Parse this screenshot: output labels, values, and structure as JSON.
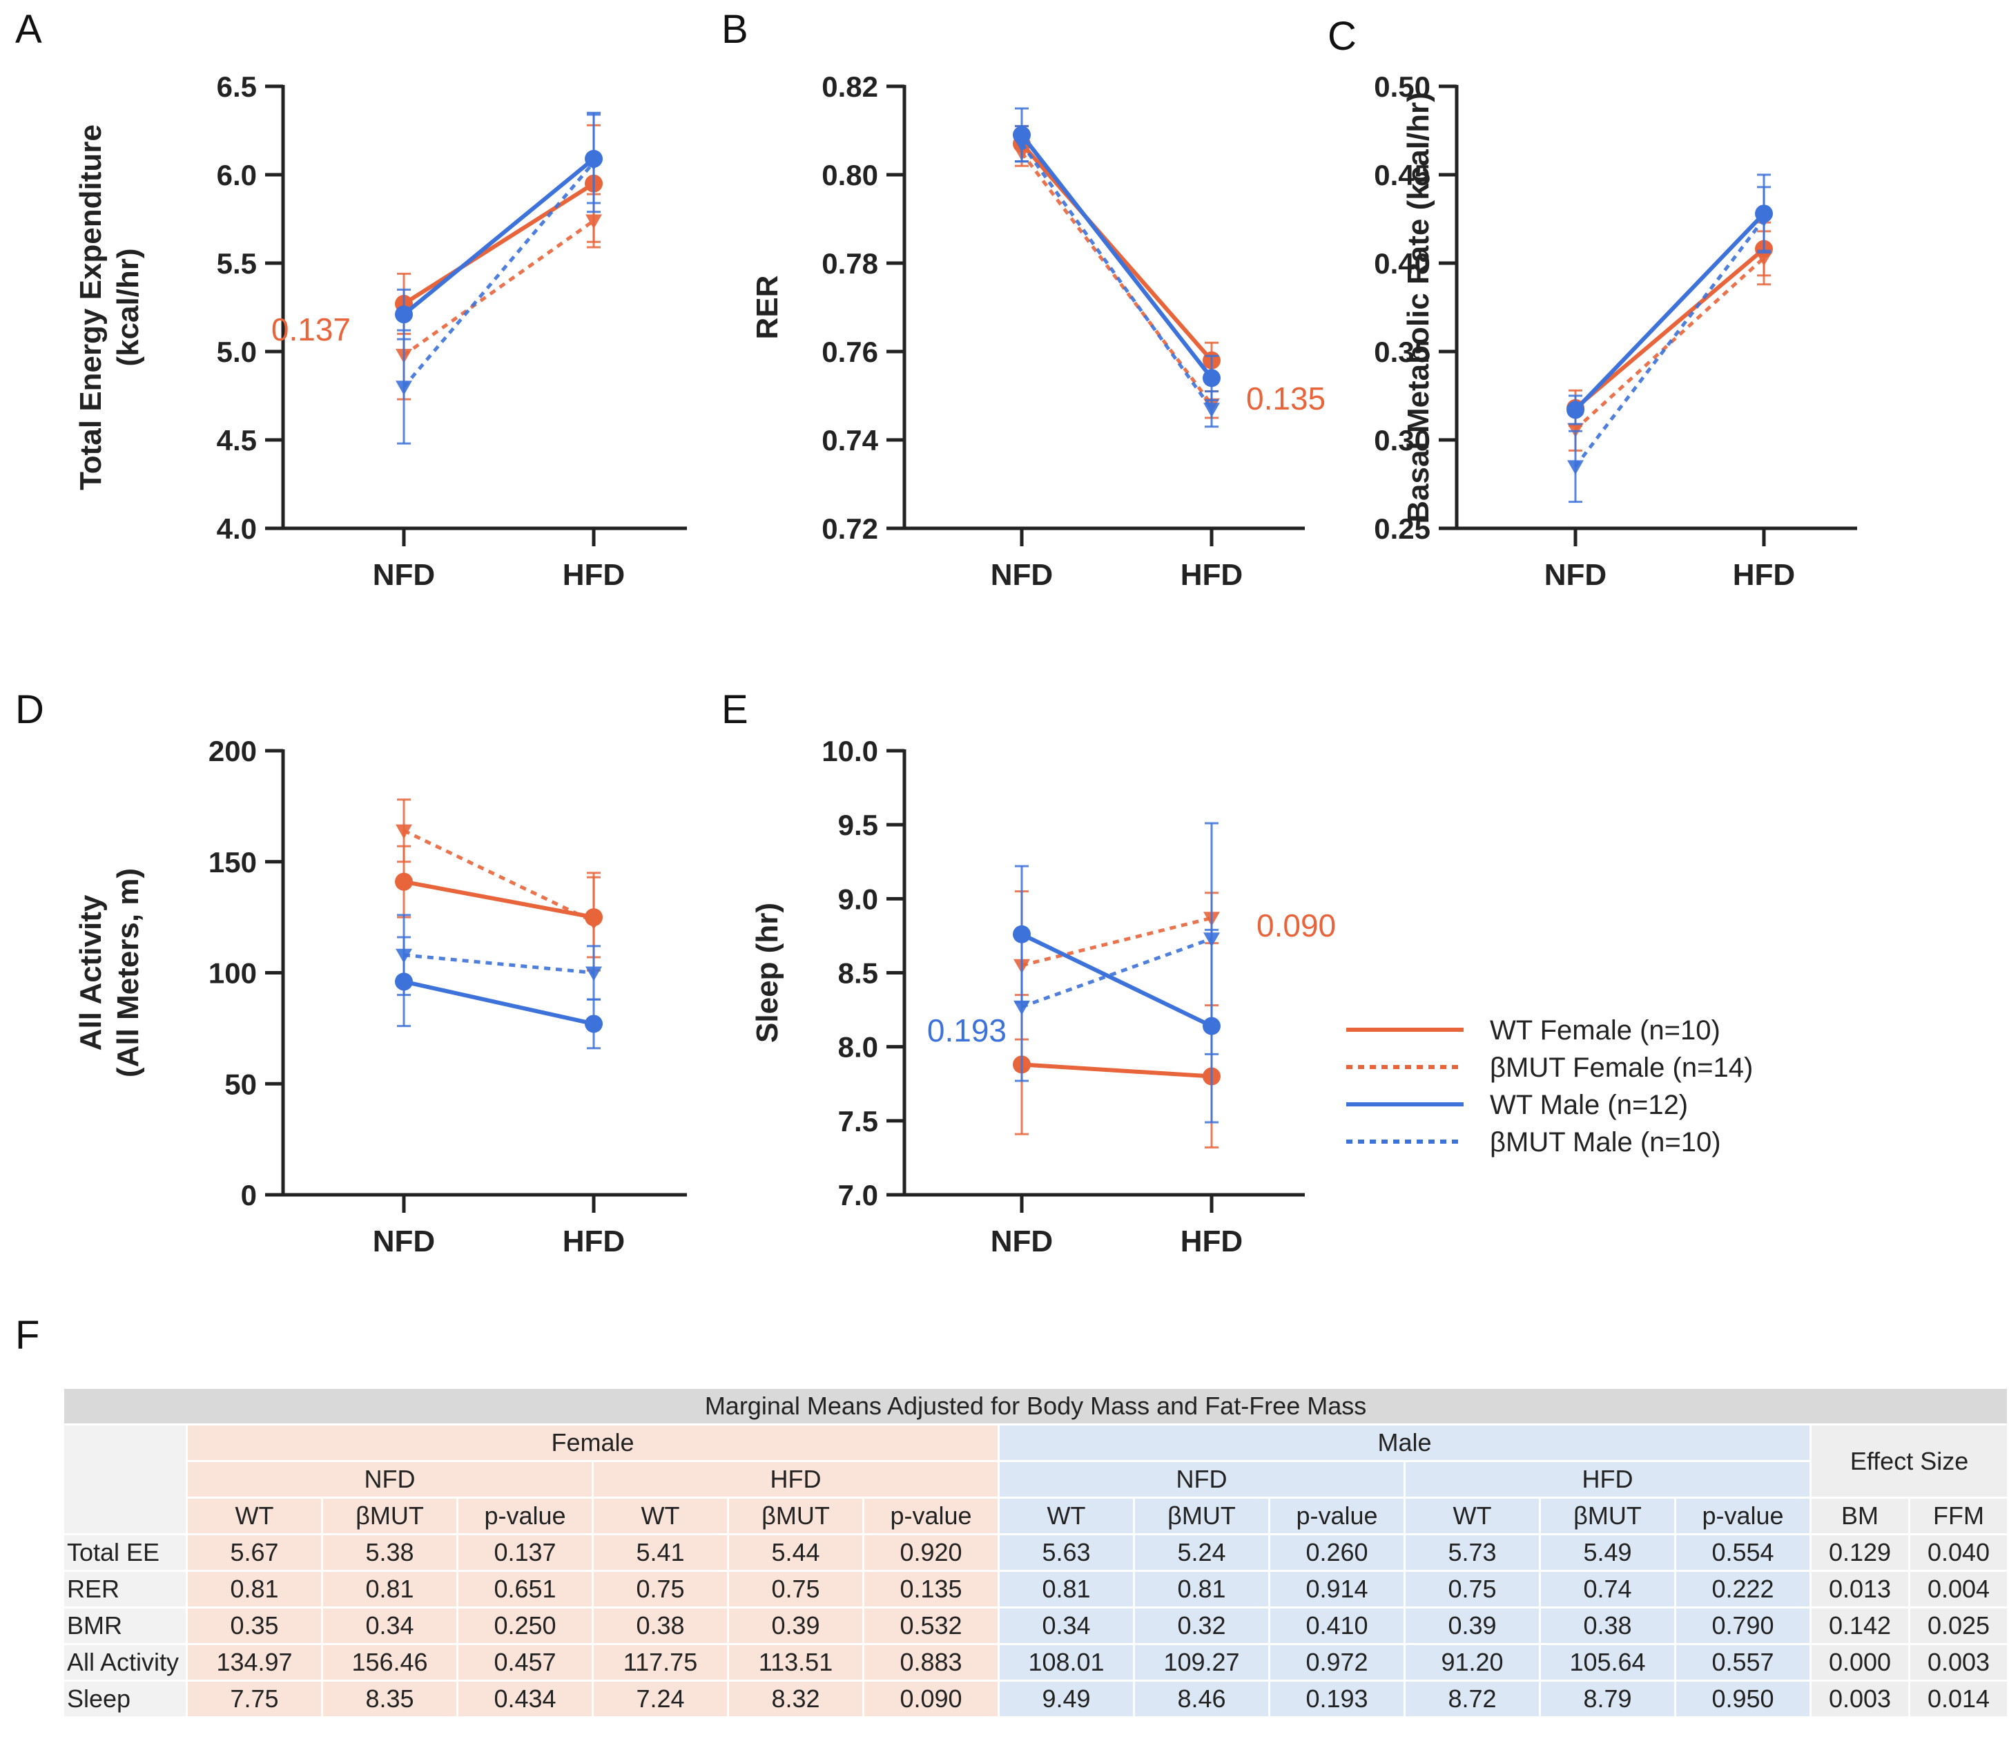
{
  "colors": {
    "female": "#e8643a",
    "male": "#3c72d9",
    "axis": "#222222"
  },
  "legend": [
    {
      "label": "WT Female  (n=10)",
      "color": "#e8643a",
      "dash": false
    },
    {
      "label": "βMUT  Female  (n=14)",
      "color": "#e8643a",
      "dash": true
    },
    {
      "label": "WT Male  (n=12)",
      "color": "#3c72d9",
      "dash": false
    },
    {
      "label": "βMUT  Male  (n=10)",
      "color": "#3c72d9",
      "dash": true
    }
  ],
  "chart_data": [
    {
      "panel": "A",
      "type": "line",
      "title": "",
      "xlabel": "",
      "ylabel": [
        "Total Energy Expenditure",
        "(kcal/hr)"
      ],
      "categories": [
        "NFD",
        "HFD"
      ],
      "ylim": [
        4.0,
        6.5
      ],
      "yticks": [
        "4.0",
        "4.5",
        "5.0",
        "5.5",
        "6.0",
        "6.5"
      ],
      "series": [
        {
          "name": "WT Female (n=10)",
          "values": [
            5.27,
            5.95
          ],
          "err": [
            0.17,
            0.33
          ],
          "dashed": false,
          "color": "female",
          "marker": "circle"
        },
        {
          "name": "βMUT Female (n=14)",
          "values": [
            4.98,
            5.74
          ],
          "err": [
            0.25,
            0.15
          ],
          "dashed": true,
          "color": "female",
          "marker": "triangle"
        },
        {
          "name": "WT Male (n=12)",
          "values": [
            5.21,
            6.09
          ],
          "err": [
            0.14,
            0.25
          ],
          "dashed": false,
          "color": "male",
          "marker": "circle"
        },
        {
          "name": "βMUT Male (n=10)",
          "values": [
            4.8,
            6.07
          ],
          "err": [
            0.32,
            0.28
          ],
          "dashed": true,
          "color": "male",
          "marker": "triangle"
        }
      ],
      "annotations": [
        {
          "text": "0.137",
          "color": "female"
        }
      ]
    },
    {
      "panel": "B",
      "type": "line",
      "title": "",
      "xlabel": "",
      "ylabel": [
        "RER"
      ],
      "categories": [
        "NFD",
        "HFD"
      ],
      "ylim": [
        0.72,
        0.82
      ],
      "yticks": [
        "0.72",
        "0.74",
        "0.76",
        "0.78",
        "0.80",
        "0.82"
      ],
      "series": [
        {
          "name": "WT Female (n=10)",
          "values": [
            0.807,
            0.758
          ],
          "err": [
            0.004,
            0.004
          ],
          "dashed": false,
          "color": "female",
          "marker": "circle"
        },
        {
          "name": "βMUT Female (n=14)",
          "values": [
            0.805,
            0.748
          ],
          "err": [
            0.003,
            0.003
          ],
          "dashed": true,
          "color": "female",
          "marker": "triangle"
        },
        {
          "name": "WT Male (n=12)",
          "values": [
            0.809,
            0.754
          ],
          "err": [
            0.006,
            0.005
          ],
          "dashed": false,
          "color": "male",
          "marker": "circle"
        },
        {
          "name": "βMUT Male (n=10)",
          "values": [
            0.807,
            0.747
          ],
          "err": [
            0.004,
            0.004
          ],
          "dashed": true,
          "color": "male",
          "marker": "triangle"
        }
      ],
      "annotations": [
        {
          "text": "0.135",
          "color": "female"
        }
      ]
    },
    {
      "panel": "C",
      "type": "line",
      "title": "",
      "xlabel": "",
      "ylabel": [
        "Basal Metabolic Rate (kcal/hr)"
      ],
      "categories": [
        "NFD",
        "HFD"
      ],
      "ylim": [
        0.25,
        0.5
      ],
      "yticks": [
        "0.25",
        "0.30",
        "0.35",
        "0.40",
        "0.45",
        "0.50"
      ],
      "series": [
        {
          "name": "WT Female (n=10)",
          "values": [
            0.318,
            0.408
          ],
          "err": [
            0.01,
            0.015
          ],
          "dashed": false,
          "color": "female",
          "marker": "circle"
        },
        {
          "name": "βMUT Female (n=14)",
          "values": [
            0.306,
            0.403
          ],
          "err": [
            0.012,
            0.015
          ],
          "dashed": true,
          "color": "female",
          "marker": "triangle"
        },
        {
          "name": "WT Male (n=12)",
          "values": [
            0.317,
            0.428
          ],
          "err": [
            0.008,
            0.022
          ],
          "dashed": false,
          "color": "male",
          "marker": "circle"
        },
        {
          "name": "βMUT Male (n=10)",
          "values": [
            0.285,
            0.425
          ],
          "err": [
            0.02,
            0.018
          ],
          "dashed": true,
          "color": "male",
          "marker": "triangle"
        }
      ],
      "annotations": []
    },
    {
      "panel": "D",
      "type": "line",
      "title": "",
      "xlabel": "",
      "ylabel": [
        "All Activity",
        "(All Meters, m)"
      ],
      "categories": [
        "NFD",
        "HFD"
      ],
      "ylim": [
        0,
        200
      ],
      "yticks": [
        "0",
        "50",
        "100",
        "150",
        "200"
      ],
      "series": [
        {
          "name": "WT Female (n=10)",
          "values": [
            141,
            125
          ],
          "err": [
            16,
            18
          ],
          "dashed": false,
          "color": "female",
          "marker": "circle"
        },
        {
          "name": "βMUT Female (n=14)",
          "values": [
            164,
            123
          ],
          "err": [
            14,
            22
          ],
          "dashed": true,
          "color": "female",
          "marker": "triangle"
        },
        {
          "name": "WT Male (n=12)",
          "values": [
            96,
            77
          ],
          "err": [
            20,
            11
          ],
          "dashed": false,
          "color": "male",
          "marker": "circle"
        },
        {
          "name": "βMUT Male (n=10)",
          "values": [
            108,
            100
          ],
          "err": [
            18,
            12
          ],
          "dashed": true,
          "color": "male",
          "marker": "triangle"
        }
      ],
      "annotations": []
    },
    {
      "panel": "E",
      "type": "line",
      "title": "",
      "xlabel": "",
      "ylabel": [
        "Sleep (hr)"
      ],
      "categories": [
        "NFD",
        "HFD"
      ],
      "ylim": [
        7.0,
        10.0
      ],
      "yticks": [
        "7.0",
        "7.5",
        "8.0",
        "8.5",
        "9.0",
        "9.5",
        "10.0"
      ],
      "series": [
        {
          "name": "WT Female (n=10)",
          "values": [
            7.88,
            7.8
          ],
          "err": [
            0.47,
            0.48
          ],
          "dashed": false,
          "color": "female",
          "marker": "circle"
        },
        {
          "name": "βMUT Female (n=14)",
          "values": [
            8.55,
            8.87
          ],
          "err": [
            0.5,
            0.17
          ],
          "dashed": true,
          "color": "female",
          "marker": "triangle"
        },
        {
          "name": "WT Male (n=12)",
          "values": [
            8.76,
            8.14
          ],
          "err": [
            0.46,
            0.65
          ],
          "dashed": false,
          "color": "male",
          "marker": "circle"
        },
        {
          "name": "βMUT Male (n=10)",
          "values": [
            8.27,
            8.73
          ],
          "err": [
            0.5,
            0.78
          ],
          "dashed": true,
          "color": "male",
          "marker": "triangle"
        }
      ],
      "annotations": [
        {
          "text": "0.090",
          "color": "female"
        },
        {
          "text": "0.193",
          "color": "male"
        }
      ]
    },
    {
      "panel": "F",
      "type": "table",
      "title": "Marginal Means Adjusted for Body Mass and Fat-Free Mass",
      "groups": [
        "Female",
        "Male",
        "Effect Size"
      ],
      "diets": [
        "NFD",
        "HFD",
        "NFD",
        "HFD"
      ],
      "columns": [
        "WT",
        "βMUT",
        "p-value",
        "WT",
        "βMUT",
        "p-value",
        "WT",
        "βMUT",
        "p-value",
        "WT",
        "βMUT",
        "p-value",
        "BM",
        "FFM"
      ],
      "rows": [
        {
          "label": "Total EE",
          "cells": [
            "5.67",
            "5.38",
            "0.137",
            "5.41",
            "5.44",
            "0.920",
            "5.63",
            "5.24",
            "0.260",
            "5.73",
            "5.49",
            "0.554",
            "0.129",
            "0.040"
          ]
        },
        {
          "label": "RER",
          "cells": [
            "0.81",
            "0.81",
            "0.651",
            "0.75",
            "0.75",
            "0.135",
            "0.81",
            "0.81",
            "0.914",
            "0.75",
            "0.74",
            "0.222",
            "0.013",
            "0.004"
          ]
        },
        {
          "label": "BMR",
          "cells": [
            "0.35",
            "0.34",
            "0.250",
            "0.38",
            "0.39",
            "0.532",
            "0.34",
            "0.32",
            "0.410",
            "0.39",
            "0.38",
            "0.790",
            "0.142",
            "0.025"
          ]
        },
        {
          "label": "All Activity",
          "cells": [
            "134.97",
            "156.46",
            "0.457",
            "117.75",
            "113.51",
            "0.883",
            "108.01",
            "109.27",
            "0.972",
            "91.20",
            "105.64",
            "0.557",
            "0.000",
            "0.003"
          ]
        },
        {
          "label": "Sleep",
          "cells": [
            "7.75",
            "8.35",
            "0.434",
            "7.24",
            "8.32",
            "0.090",
            "9.49",
            "8.46",
            "0.193",
            "8.72",
            "8.79",
            "0.950",
            "0.003",
            "0.014"
          ]
        }
      ]
    }
  ]
}
